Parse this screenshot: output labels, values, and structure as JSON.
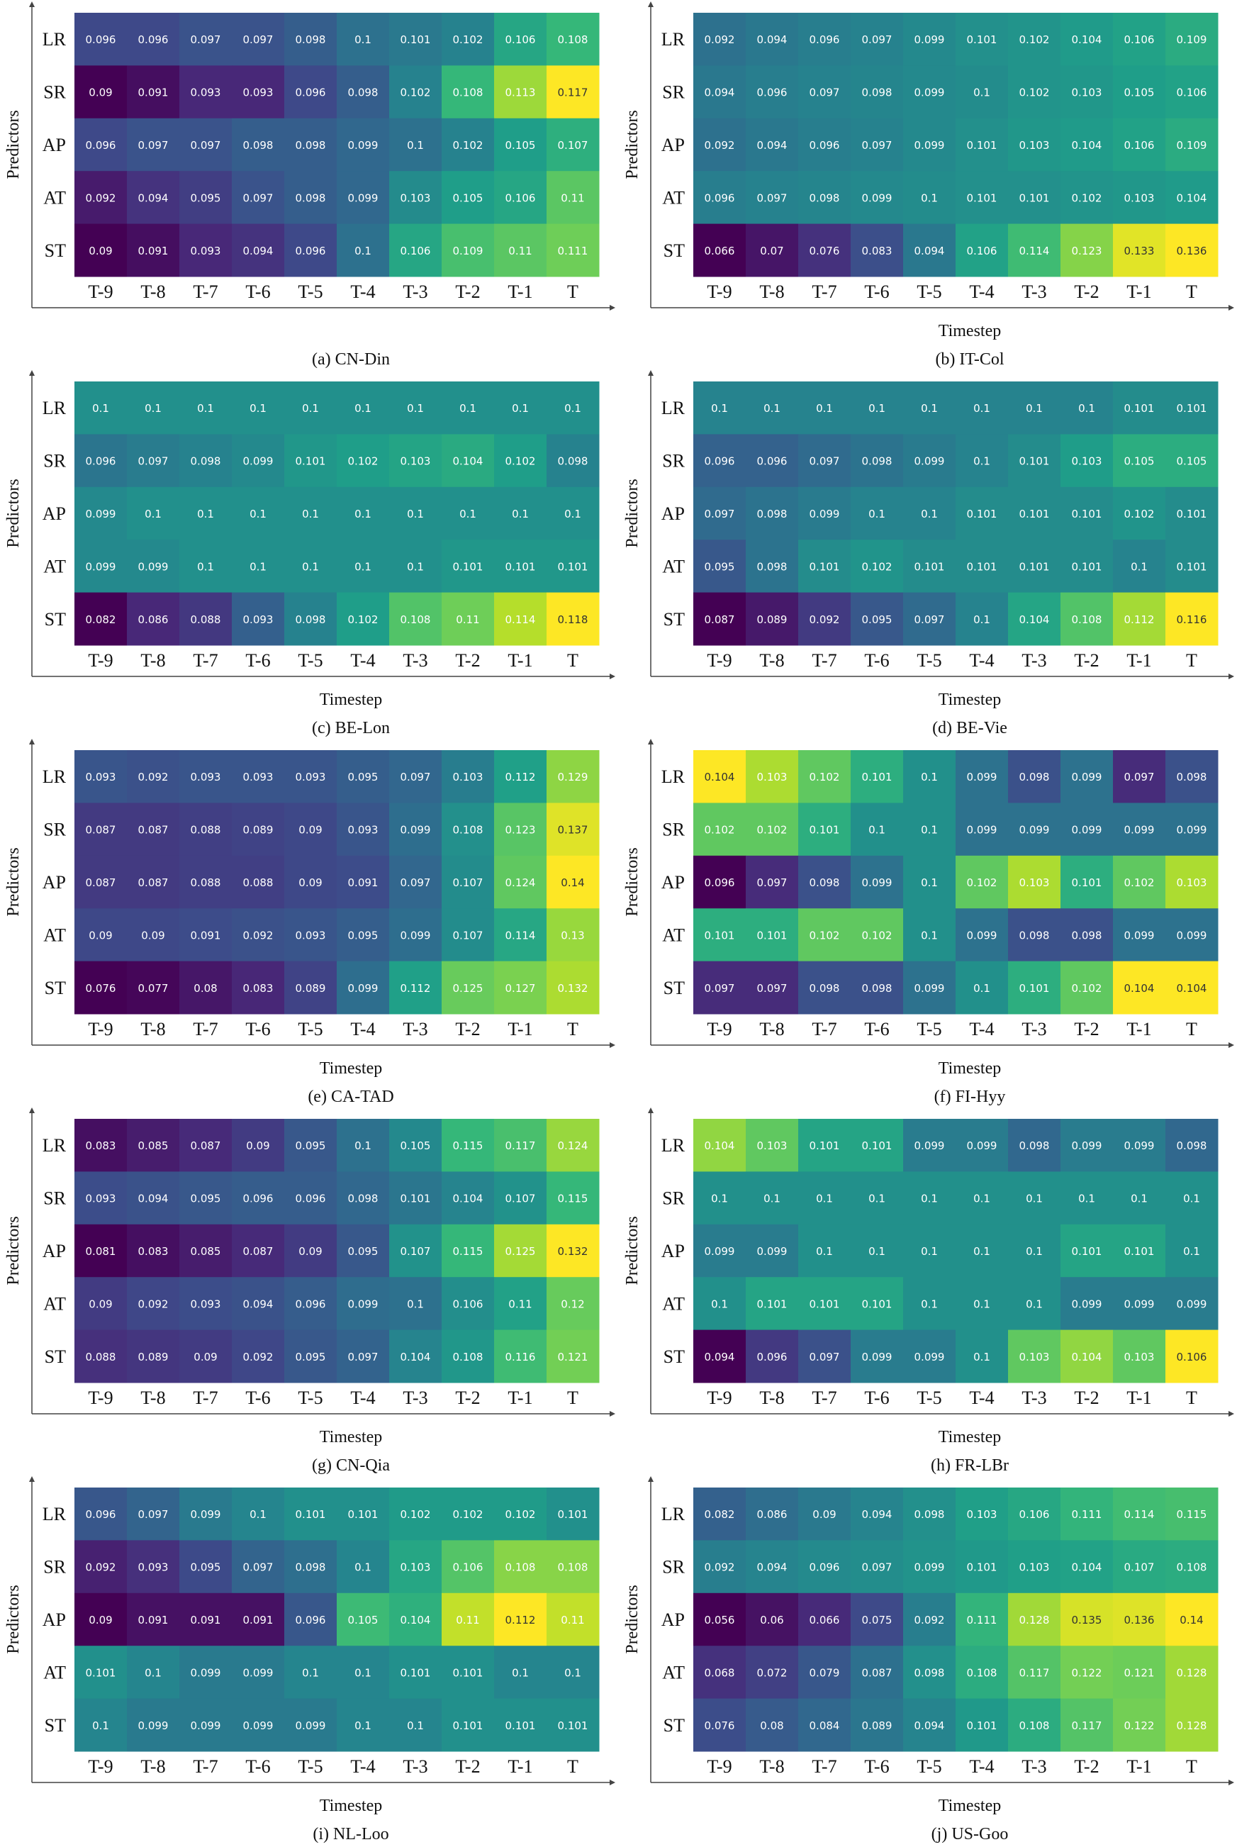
{
  "figure": {
    "rows": [
      "LR",
      "SR",
      "AP",
      "AT",
      "ST"
    ],
    "cols": [
      "T-9",
      "T-8",
      "T-7",
      "T-6",
      "T-5",
      "T-4",
      "T-3",
      "T-2",
      "T-1",
      "T"
    ],
    "ylabel": "Predictors",
    "xlabel": "Timestep",
    "colormap": [
      "#440154",
      "#482878",
      "#3e4989",
      "#31688e",
      "#26828e",
      "#1f9e89",
      "#35b779",
      "#6ece58",
      "#b5de2b",
      "#fde725"
    ]
  },
  "chart_data": [
    {
      "type": "heatmap",
      "caption": "(a) CN-Din",
      "ylabel": "Predictors",
      "xlabel": "",
      "rows": [
        "LR",
        "SR",
        "AP",
        "AT",
        "ST"
      ],
      "cols": [
        "T-9",
        "T-8",
        "T-7",
        "T-6",
        "T-5",
        "T-4",
        "T-3",
        "T-2",
        "T-1",
        "T"
      ],
      "values": [
        [
          "0.096",
          "0.096",
          "0.097",
          "0.097",
          "0.098",
          "0.1",
          "0.101",
          "0.102",
          "0.106",
          "0.108"
        ],
        [
          "0.09",
          "0.091",
          "0.093",
          "0.093",
          "0.096",
          "0.098",
          "0.102",
          "0.108",
          "0.113",
          "0.117"
        ],
        [
          "0.096",
          "0.097",
          "0.097",
          "0.098",
          "0.098",
          "0.099",
          "0.1",
          "0.102",
          "0.105",
          "0.107"
        ],
        [
          "0.092",
          "0.094",
          "0.095",
          "0.097",
          "0.098",
          "0.099",
          "0.103",
          "0.105",
          "0.106",
          "0.11"
        ],
        [
          "0.09",
          "0.091",
          "0.093",
          "0.094",
          "0.096",
          "0.1",
          "0.106",
          "0.109",
          "0.11",
          "0.111"
        ]
      ]
    },
    {
      "type": "heatmap",
      "caption": "(b) IT-Col",
      "ylabel": "Predictors",
      "xlabel": "Timestep",
      "rows": [
        "LR",
        "SR",
        "AP",
        "AT",
        "ST"
      ],
      "cols": [
        "T-9",
        "T-8",
        "T-7",
        "T-6",
        "T-5",
        "T-4",
        "T-3",
        "T-2",
        "T-1",
        "T"
      ],
      "values": [
        [
          "0.092",
          "0.094",
          "0.096",
          "0.097",
          "0.099",
          "0.101",
          "0.102",
          "0.104",
          "0.106",
          "0.109"
        ],
        [
          "0.094",
          "0.096",
          "0.097",
          "0.098",
          "0.099",
          "0.1",
          "0.102",
          "0.103",
          "0.105",
          "0.106"
        ],
        [
          "0.092",
          "0.094",
          "0.096",
          "0.097",
          "0.099",
          "0.101",
          "0.103",
          "0.104",
          "0.106",
          "0.109"
        ],
        [
          "0.096",
          "0.097",
          "0.098",
          "0.099",
          "0.1",
          "0.101",
          "0.101",
          "0.102",
          "0.103",
          "0.104"
        ],
        [
          "0.066",
          "0.07",
          "0.076",
          "0.083",
          "0.094",
          "0.106",
          "0.114",
          "0.123",
          "0.133",
          "0.136"
        ]
      ]
    },
    {
      "type": "heatmap",
      "caption": "(c) BE-Lon",
      "ylabel": "Predictors",
      "xlabel": "Timestep",
      "rows": [
        "LR",
        "SR",
        "AP",
        "AT",
        "ST"
      ],
      "cols": [
        "T-9",
        "T-8",
        "T-7",
        "T-6",
        "T-5",
        "T-4",
        "T-3",
        "T-2",
        "T-1",
        "T"
      ],
      "values": [
        [
          "0.1",
          "0.1",
          "0.1",
          "0.1",
          "0.1",
          "0.1",
          "0.1",
          "0.1",
          "0.1",
          "0.1"
        ],
        [
          "0.096",
          "0.097",
          "0.098",
          "0.099",
          "0.101",
          "0.102",
          "0.103",
          "0.104",
          "0.102",
          "0.098"
        ],
        [
          "0.099",
          "0.1",
          "0.1",
          "0.1",
          "0.1",
          "0.1",
          "0.1",
          "0.1",
          "0.1",
          "0.1"
        ],
        [
          "0.099",
          "0.099",
          "0.1",
          "0.1",
          "0.1",
          "0.1",
          "0.1",
          "0.101",
          "0.101",
          "0.101"
        ],
        [
          "0.082",
          "0.086",
          "0.088",
          "0.093",
          "0.098",
          "0.102",
          "0.108",
          "0.11",
          "0.114",
          "0.118"
        ]
      ]
    },
    {
      "type": "heatmap",
      "caption": "(d) BE-Vie",
      "ylabel": "Predictors",
      "xlabel": "Timestep",
      "rows": [
        "LR",
        "SR",
        "AP",
        "AT",
        "ST"
      ],
      "cols": [
        "T-9",
        "T-8",
        "T-7",
        "T-6",
        "T-5",
        "T-4",
        "T-3",
        "T-2",
        "T-1",
        "T"
      ],
      "values": [
        [
          "0.1",
          "0.1",
          "0.1",
          "0.1",
          "0.1",
          "0.1",
          "0.1",
          "0.1",
          "0.101",
          "0.101"
        ],
        [
          "0.096",
          "0.096",
          "0.097",
          "0.098",
          "0.099",
          "0.1",
          "0.101",
          "0.103",
          "0.105",
          "0.105"
        ],
        [
          "0.097",
          "0.098",
          "0.099",
          "0.1",
          "0.1",
          "0.101",
          "0.101",
          "0.101",
          "0.102",
          "0.101"
        ],
        [
          "0.095",
          "0.098",
          "0.101",
          "0.102",
          "0.101",
          "0.101",
          "0.101",
          "0.101",
          "0.1",
          "0.101"
        ],
        [
          "0.087",
          "0.089",
          "0.092",
          "0.095",
          "0.097",
          "0.1",
          "0.104",
          "0.108",
          "0.112",
          "0.116"
        ]
      ]
    },
    {
      "type": "heatmap",
      "caption": "(e) CA-TAD",
      "ylabel": "Predictors",
      "xlabel": "Timestep",
      "rows": [
        "LR",
        "SR",
        "AP",
        "AT",
        "ST"
      ],
      "cols": [
        "T-9",
        "T-8",
        "T-7",
        "T-6",
        "T-5",
        "T-4",
        "T-3",
        "T-2",
        "T-1",
        "T"
      ],
      "values": [
        [
          "0.093",
          "0.092",
          "0.093",
          "0.093",
          "0.093",
          "0.095",
          "0.097",
          "0.103",
          "0.112",
          "0.129"
        ],
        [
          "0.087",
          "0.087",
          "0.088",
          "0.089",
          "0.09",
          "0.093",
          "0.099",
          "0.108",
          "0.123",
          "0.137"
        ],
        [
          "0.087",
          "0.087",
          "0.088",
          "0.088",
          "0.09",
          "0.091",
          "0.097",
          "0.107",
          "0.124",
          "0.14"
        ],
        [
          "0.09",
          "0.09",
          "0.091",
          "0.092",
          "0.093",
          "0.095",
          "0.099",
          "0.107",
          "0.114",
          "0.13"
        ],
        [
          "0.076",
          "0.077",
          "0.08",
          "0.083",
          "0.089",
          "0.099",
          "0.112",
          "0.125",
          "0.127",
          "0.132"
        ]
      ]
    },
    {
      "type": "heatmap",
      "caption": "(f) FI-Hyy",
      "ylabel": "Predictors",
      "xlabel": "Timestep",
      "rows": [
        "LR",
        "SR",
        "AP",
        "AT",
        "ST"
      ],
      "cols": [
        "T-9",
        "T-8",
        "T-7",
        "T-6",
        "T-5",
        "T-4",
        "T-3",
        "T-2",
        "T-1",
        "T"
      ],
      "values": [
        [
          "0.104",
          "0.103",
          "0.102",
          "0.101",
          "0.1",
          "0.099",
          "0.098",
          "0.099",
          "0.097",
          "0.098"
        ],
        [
          "0.102",
          "0.102",
          "0.101",
          "0.1",
          "0.1",
          "0.099",
          "0.099",
          "0.099",
          "0.099",
          "0.099"
        ],
        [
          "0.096",
          "0.097",
          "0.098",
          "0.099",
          "0.1",
          "0.102",
          "0.103",
          "0.101",
          "0.102",
          "0.103"
        ],
        [
          "0.101",
          "0.101",
          "0.102",
          "0.102",
          "0.1",
          "0.099",
          "0.098",
          "0.098",
          "0.099",
          "0.099"
        ],
        [
          "0.097",
          "0.097",
          "0.098",
          "0.098",
          "0.099",
          "0.1",
          "0.101",
          "0.102",
          "0.104",
          "0.104"
        ]
      ]
    },
    {
      "type": "heatmap",
      "caption": "(g) CN-Qia",
      "ylabel": "Predictors",
      "xlabel": "Timestep",
      "rows": [
        "LR",
        "SR",
        "AP",
        "AT",
        "ST"
      ],
      "cols": [
        "T-9",
        "T-8",
        "T-7",
        "T-6",
        "T-5",
        "T-4",
        "T-3",
        "T-2",
        "T-1",
        "T"
      ],
      "values": [
        [
          "0.083",
          "0.085",
          "0.087",
          "0.09",
          "0.095",
          "0.1",
          "0.105",
          "0.115",
          "0.117",
          "0.124"
        ],
        [
          "0.093",
          "0.094",
          "0.095",
          "0.096",
          "0.096",
          "0.098",
          "0.101",
          "0.104",
          "0.107",
          "0.115"
        ],
        [
          "0.081",
          "0.083",
          "0.085",
          "0.087",
          "0.09",
          "0.095",
          "0.107",
          "0.115",
          "0.125",
          "0.132"
        ],
        [
          "0.09",
          "0.092",
          "0.093",
          "0.094",
          "0.096",
          "0.099",
          "0.1",
          "0.106",
          "0.11",
          "0.12"
        ],
        [
          "0.088",
          "0.089",
          "0.09",
          "0.092",
          "0.095",
          "0.097",
          "0.104",
          "0.108",
          "0.116",
          "0.121"
        ]
      ]
    },
    {
      "type": "heatmap",
      "caption": "(h) FR-LBr",
      "ylabel": "Predictors",
      "xlabel": "Timestep",
      "rows": [
        "LR",
        "SR",
        "AP",
        "AT",
        "ST"
      ],
      "cols": [
        "T-9",
        "T-8",
        "T-7",
        "T-6",
        "T-5",
        "T-4",
        "T-3",
        "T-2",
        "T-1",
        "T"
      ],
      "values": [
        [
          "0.104",
          "0.103",
          "0.101",
          "0.101",
          "0.099",
          "0.099",
          "0.098",
          "0.099",
          "0.099",
          "0.098"
        ],
        [
          "0.1",
          "0.1",
          "0.1",
          "0.1",
          "0.1",
          "0.1",
          "0.1",
          "0.1",
          "0.1",
          "0.1"
        ],
        [
          "0.099",
          "0.099",
          "0.1",
          "0.1",
          "0.1",
          "0.1",
          "0.1",
          "0.101",
          "0.101",
          "0.1"
        ],
        [
          "0.1",
          "0.101",
          "0.101",
          "0.101",
          "0.1",
          "0.1",
          "0.1",
          "0.099",
          "0.099",
          "0.099"
        ],
        [
          "0.094",
          "0.096",
          "0.097",
          "0.099",
          "0.099",
          "0.1",
          "0.103",
          "0.104",
          "0.103",
          "0.106"
        ]
      ]
    },
    {
      "type": "heatmap",
      "caption": "(i) NL-Loo",
      "ylabel": "Predictors",
      "xlabel": "Timestep",
      "rows": [
        "LR",
        "SR",
        "AP",
        "AT",
        "ST"
      ],
      "cols": [
        "T-9",
        "T-8",
        "T-7",
        "T-6",
        "T-5",
        "T-4",
        "T-3",
        "T-2",
        "T-1",
        "T"
      ],
      "values": [
        [
          "0.096",
          "0.097",
          "0.099",
          "0.1",
          "0.101",
          "0.101",
          "0.102",
          "0.102",
          "0.102",
          "0.101"
        ],
        [
          "0.092",
          "0.093",
          "0.095",
          "0.097",
          "0.098",
          "0.1",
          "0.103",
          "0.106",
          "0.108",
          "0.108"
        ],
        [
          "0.09",
          "0.091",
          "0.091",
          "0.091",
          "0.096",
          "0.105",
          "0.104",
          "0.11",
          "0.112",
          "0.11"
        ],
        [
          "0.101",
          "0.1",
          "0.099",
          "0.099",
          "0.1",
          "0.1",
          "0.101",
          "0.101",
          "0.1",
          "0.1"
        ],
        [
          "0.1",
          "0.099",
          "0.099",
          "0.099",
          "0.099",
          "0.1",
          "0.1",
          "0.101",
          "0.101",
          "0.101"
        ]
      ]
    },
    {
      "type": "heatmap",
      "caption": "(j) US-Goo",
      "ylabel": "Predictors",
      "xlabel": "Timestep",
      "rows": [
        "LR",
        "SR",
        "AP",
        "AT",
        "ST"
      ],
      "cols": [
        "T-9",
        "T-8",
        "T-7",
        "T-6",
        "T-5",
        "T-4",
        "T-3",
        "T-2",
        "T-1",
        "T"
      ],
      "values": [
        [
          "0.082",
          "0.086",
          "0.09",
          "0.094",
          "0.098",
          "0.103",
          "0.106",
          "0.111",
          "0.114",
          "0.115"
        ],
        [
          "0.092",
          "0.094",
          "0.096",
          "0.097",
          "0.099",
          "0.101",
          "0.103",
          "0.104",
          "0.107",
          "0.108"
        ],
        [
          "0.056",
          "0.06",
          "0.066",
          "0.075",
          "0.092",
          "0.111",
          "0.128",
          "0.135",
          "0.136",
          "0.14"
        ],
        [
          "0.068",
          "0.072",
          "0.079",
          "0.087",
          "0.098",
          "0.108",
          "0.117",
          "0.122",
          "0.121",
          "0.128"
        ],
        [
          "0.076",
          "0.08",
          "0.084",
          "0.089",
          "0.094",
          "0.101",
          "0.108",
          "0.117",
          "0.122",
          "0.128"
        ]
      ]
    }
  ]
}
